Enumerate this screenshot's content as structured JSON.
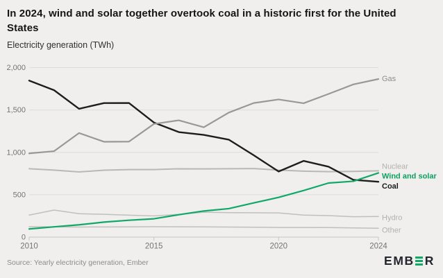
{
  "header": {
    "title": "In 2024, wind and solar together overtook coal in a historic first for the United States",
    "subtitle": "Electricity generation (TWh)"
  },
  "footer": {
    "source": "Source: Yearly electricity generation, Ember",
    "logo_prefix": "EMB",
    "logo_suffix": "R"
  },
  "colors": {
    "background": "#f0efed",
    "title_text": "#151515",
    "subtitle_text": "#2f2f2d",
    "axis_label": "#74746f",
    "gridline": "#dddcd8",
    "axis_line": "#c7c6c2",
    "logo_text": "#23262d",
    "logo_green": "#10a866"
  },
  "chart_data": {
    "type": "line",
    "title": "In 2024, wind and solar together overtook coal in a historic first for the United States",
    "ylabel": "Electricity generation (TWh)",
    "x": [
      2010,
      2011,
      2012,
      2013,
      2014,
      2015,
      2016,
      2017,
      2018,
      2019,
      2020,
      2021,
      2022,
      2023,
      2024
    ],
    "xlim": [
      2010,
      2024
    ],
    "ylim": [
      0,
      2000
    ],
    "grid": true,
    "legend_position": "right",
    "xticks": [
      2010,
      2015,
      2020,
      2024
    ],
    "xtick_labels": [
      "2010",
      "2015",
      "2020",
      "2024"
    ],
    "yticks": [
      0,
      500,
      1000,
      1500,
      2000
    ],
    "ytick_labels": [
      "0",
      "500",
      "1,000",
      "1,500",
      "2,000"
    ],
    "series": [
      {
        "name": "Other",
        "color": "#c0bfbc",
        "label_color": "#b2b1ae",
        "line_width": 1.5,
        "bold_label": false,
        "label_dy": 2,
        "values": [
          123,
          121,
          119,
          120,
          121,
          123,
          122,
          121,
          119,
          117,
          113,
          114,
          112,
          108,
          104
        ]
      },
      {
        "name": "Hydro",
        "color": "#c0bfbc",
        "label_color": "#b2b1ae",
        "line_width": 1.5,
        "bold_label": false,
        "label_dy": 1,
        "values": [
          260,
          319,
          276,
          269,
          259,
          250,
          268,
          293,
          288,
          287,
          285,
          260,
          254,
          240,
          243
        ]
      },
      {
        "name": "Nuclear",
        "color": "#b9b8b5",
        "label_color": "#b2b1ae",
        "line_width": 2,
        "bold_label": false,
        "label_dy": -7,
        "values": [
          807,
          790,
          769,
          789,
          797,
          797,
          806,
          805,
          807,
          809,
          790,
          778,
          772,
          775,
          782
        ]
      },
      {
        "name": "Coal",
        "color": "#1d1d1b",
        "label_color": "#1d1d1b",
        "line_width": 2.4,
        "bold_label": true,
        "label_dy": 6,
        "values": [
          1847,
          1733,
          1514,
          1581,
          1582,
          1352,
          1239,
          1206,
          1150,
          966,
          774,
          899,
          831,
          675,
          653
        ]
      },
      {
        "name": "Gas",
        "color": "#989895",
        "label_color": "#8d8d8a",
        "line_width": 2.2,
        "bold_label": false,
        "label_dy": -1,
        "values": [
          988,
          1014,
          1228,
          1125,
          1127,
          1335,
          1378,
          1296,
          1469,
          1582,
          1624,
          1579,
          1689,
          1802,
          1865
        ]
      },
      {
        "name": "Wind and solar",
        "color": "#10a866",
        "label_color": "#0ca15e",
        "line_width": 2.2,
        "bold_label": true,
        "label_dy": 4,
        "values": [
          96,
          121,
          145,
          177,
          199,
          216,
          264,
          308,
          336,
          403,
          469,
          550,
          638,
          659,
          757
        ]
      }
    ]
  }
}
